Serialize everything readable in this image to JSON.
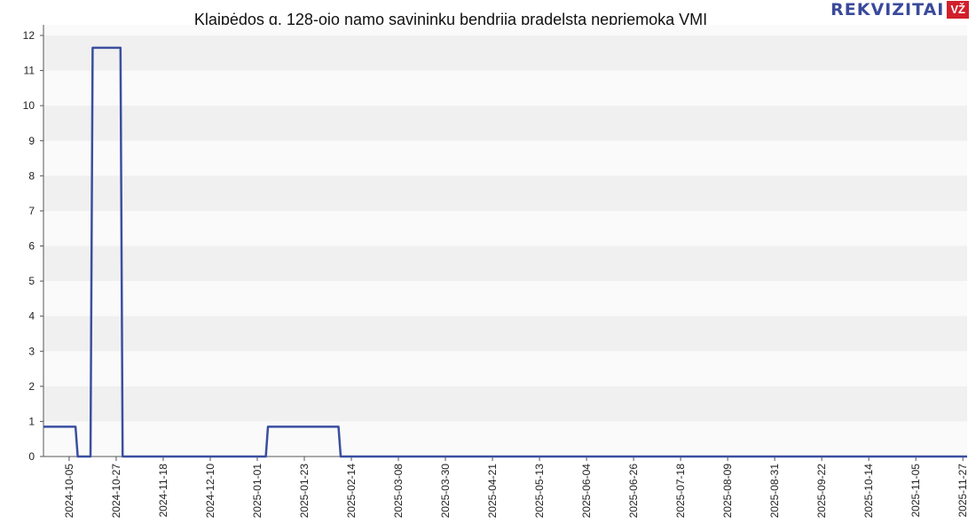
{
  "chart_data": {
    "type": "line",
    "title": "Klaipėdos g. 128-ojo namo savininkų bendrija pradelsta nepriemoka VMI",
    "xlabel": "",
    "ylabel": "",
    "ylim": [
      0,
      12
    ],
    "yticks": [
      "0",
      "1",
      "2",
      "3",
      "4",
      "5",
      "6",
      "7",
      "8",
      "9",
      "10",
      "11",
      "12"
    ],
    "xlim": [
      "2024-09-23",
      "2025-11-29"
    ],
    "xticks": [
      "2024-10-05",
      "2024-10-27",
      "2024-11-18",
      "2024-12-10",
      "2025-01-01",
      "2025-01-23",
      "2025-02-14",
      "2025-03-08",
      "2025-03-30",
      "2025-04-21",
      "2025-05-13",
      "2025-06-04",
      "2025-06-26",
      "2025-07-18",
      "2025-08-09",
      "2025-08-31",
      "2025-09-22",
      "2025-10-14",
      "2025-11-05",
      "2025-11-27"
    ],
    "grid": "horizontal bands",
    "legend": "none",
    "series": [
      {
        "color": "#3a4fa0",
        "points": [
          [
            "2024-09-23",
            0.85
          ],
          [
            "2024-10-08",
            0.85
          ],
          [
            "2024-10-09",
            0
          ],
          [
            "2024-10-15",
            0
          ],
          [
            "2024-10-16",
            11.65
          ],
          [
            "2024-10-29",
            11.65
          ],
          [
            "2024-10-30",
            0
          ],
          [
            "2025-01-05",
            0
          ],
          [
            "2025-01-06",
            0.85
          ],
          [
            "2025-02-08",
            0.85
          ],
          [
            "2025-02-09",
            0
          ],
          [
            "2025-11-29",
            0
          ]
        ]
      }
    ]
  },
  "logo": {
    "text": "REKVIZITAI",
    "badge": "VŽ"
  }
}
